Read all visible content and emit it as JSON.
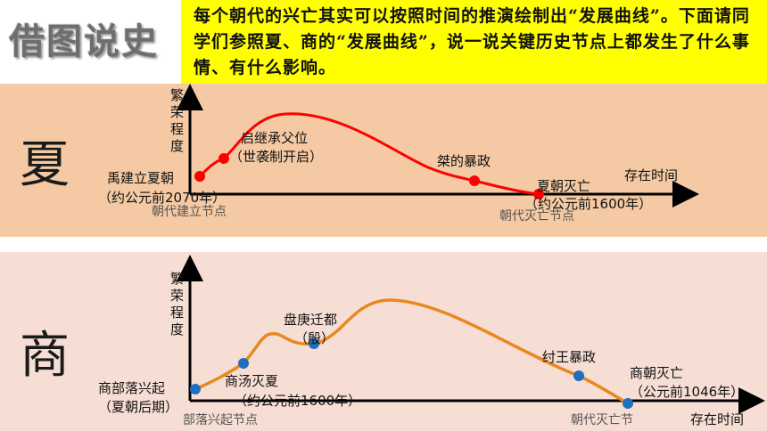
{
  "header": {
    "title": "借图说史",
    "instruction": "每个朝代的兴亡其实可以按照时间的推演绘制出“发展曲线”。下面请同学们参照夏、商的“发展曲线”，说一说关键历史节点上都发生了什么事情、有什么影响。"
  },
  "xia": {
    "char": "夏",
    "y_axis_label": [
      "繁",
      "荣",
      "程",
      "度"
    ],
    "x_axis_label": "存在时间",
    "points": [
      {
        "title": "禹建立夏朝",
        "sub": "（约公元前2070年）"
      },
      {
        "title": "启继承父位",
        "sub": "（世袭制开启）"
      },
      {
        "title": "桀的暴政",
        "sub": ""
      },
      {
        "title": "夏朝灭亡",
        "sub": "（约公元前1600年）"
      }
    ],
    "node_labels": {
      "start": "朝代建立节点",
      "end": "朝代灭亡节点"
    },
    "colors": {
      "curve": "#ff0000",
      "point": "#ff0000"
    }
  },
  "shang": {
    "char": "商",
    "y_axis_label": [
      "繁",
      "荣",
      "程",
      "度"
    ],
    "x_axis_label": "存在时间",
    "points": [
      {
        "title": "商部落兴起",
        "sub": "（夏朝后期）"
      },
      {
        "title": "商汤灭夏",
        "sub": "（约公元前1600年）"
      },
      {
        "title": "盘庚迁都",
        "sub": "（殷）"
      },
      {
        "title": "纣王暴政",
        "sub": ""
      },
      {
        "title": "商朝灭亡",
        "sub": "（公元前1046年）"
      }
    ],
    "node_labels": {
      "start": "部落兴起节点",
      "end": "朝代灭亡节"
    },
    "colors": {
      "curve": "#e8891f",
      "point": "#1f6fbf"
    }
  }
}
